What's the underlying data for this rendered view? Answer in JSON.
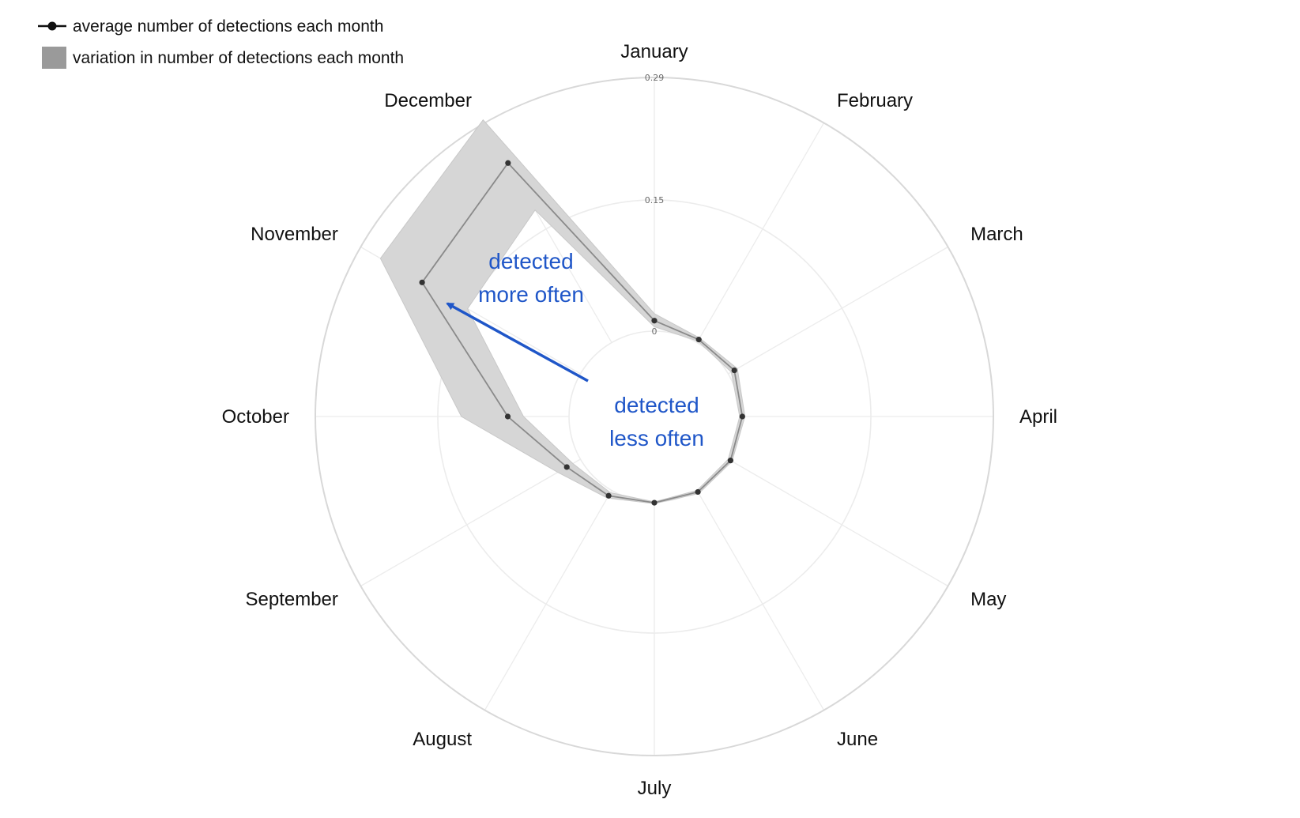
{
  "legend": {
    "mean_label": "average number of detections each month",
    "range_label": "variation in number of detections each month"
  },
  "colors": {
    "band": "#d6d6d6",
    "mean_line": "#8a8a8a",
    "point": "#333333",
    "grid": "#ececec",
    "outer_ring": "#d8d8d8",
    "annotation": "#1f56c8"
  },
  "annotations": {
    "more_line1": "detected",
    "more_line2": "more often",
    "less_line1": "detected",
    "less_line2": "less often"
  },
  "chart_data": {
    "type": "radar",
    "categories": [
      "January",
      "February",
      "March",
      "April",
      "May",
      "June",
      "July",
      "August",
      "September",
      "October",
      "November",
      "December"
    ],
    "radial_axis": {
      "min": 0,
      "max": 0.29,
      "ticks": [
        0,
        0.15,
        0.29
      ],
      "tick_labels": [
        "0",
        "0.15",
        "0.29"
      ],
      "grid": true
    },
    "series": [
      {
        "name": "average number of detections each month",
        "values": [
          0.012,
          0.004,
          0.008,
          0.003,
          0.003,
          0.002,
          0.001,
          0.007,
          0.018,
          0.07,
          0.209,
          0.237
        ]
      },
      {
        "name": "variation in number of detections each month",
        "type": "range",
        "low": [
          0.005,
          0.002,
          0.004,
          0.0,
          0.0,
          0.0,
          0.0,
          0.003,
          0.01,
          0.052,
          0.149,
          0.175
        ],
        "high": [
          0.02,
          0.006,
          0.012,
          0.006,
          0.005,
          0.004,
          0.002,
          0.01,
          0.03,
          0.123,
          0.264,
          0.294
        ]
      }
    ]
  }
}
